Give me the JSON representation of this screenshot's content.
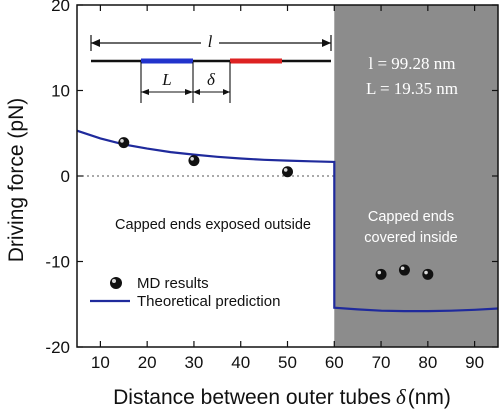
{
  "chart_data": {
    "type": "scatter",
    "xlabel": "Distance between outer tubes",
    "xlabel_symbol": "δ",
    "xlabel_unit": "(nm)",
    "ylabel": "Driving force (pN)",
    "xlim": [
      5,
      95
    ],
    "ylim": [
      -20,
      20
    ],
    "x_ticks": [
      "10",
      "20",
      "30",
      "40",
      "50",
      "60",
      "70",
      "80",
      "90"
    ],
    "y_ticks": [
      "-20",
      "-10",
      "0",
      "10",
      "20"
    ],
    "zero_line": "dotted",
    "shaded_region": {
      "x_from": 60,
      "x_to": 95,
      "color": "#8c8c8c"
    },
    "series": [
      {
        "name": "MD results",
        "kind": "scatter",
        "color": "#111111",
        "points": [
          {
            "x": 15,
            "y": 3.9
          },
          {
            "x": 30,
            "y": 1.8
          },
          {
            "x": 50,
            "y": 0.5
          },
          {
            "x": 70,
            "y": -11.5
          },
          {
            "x": 75,
            "y": -11.0
          },
          {
            "x": 80,
            "y": -11.5
          }
        ]
      },
      {
        "name": "Theoretical prediction",
        "kind": "line",
        "color": "#1f2a9c",
        "points": [
          {
            "x": 5,
            "y": 5.3
          },
          {
            "x": 10,
            "y": 4.4
          },
          {
            "x": 15,
            "y": 3.7
          },
          {
            "x": 20,
            "y": 3.2
          },
          {
            "x": 25,
            "y": 2.8
          },
          {
            "x": 30,
            "y": 2.5
          },
          {
            "x": 35,
            "y": 2.25
          },
          {
            "x": 40,
            "y": 2.05
          },
          {
            "x": 45,
            "y": 1.9
          },
          {
            "x": 50,
            "y": 1.8
          },
          {
            "x": 55,
            "y": 1.72
          },
          {
            "x": 60,
            "y": 1.65
          },
          {
            "x": 60,
            "y": -15.4
          },
          {
            "x": 65,
            "y": -15.6
          },
          {
            "x": 70,
            "y": -15.75
          },
          {
            "x": 75,
            "y": -15.8
          },
          {
            "x": 80,
            "y": -15.8
          },
          {
            "x": 85,
            "y": -15.75
          },
          {
            "x": 90,
            "y": -15.65
          },
          {
            "x": 95,
            "y": -15.5
          }
        ]
      }
    ],
    "legend": {
      "placement": "bottom-left",
      "items": [
        {
          "label": "MD results",
          "marker": "sphere"
        },
        {
          "label": "Theoretical prediction",
          "marker": "line"
        }
      ]
    },
    "annotations": {
      "left_region": "Capped ends exposed outside",
      "right_region_line1": "Capped ends",
      "right_region_line2": "covered inside",
      "param_l": "l = 99.28 nm",
      "param_L": "L = 19.35 nm"
    },
    "schematic": {
      "label_l": "l",
      "label_L": "L",
      "label_delta": "δ",
      "segment_colors": [
        "#2233cc",
        "#dd2222"
      ]
    }
  }
}
